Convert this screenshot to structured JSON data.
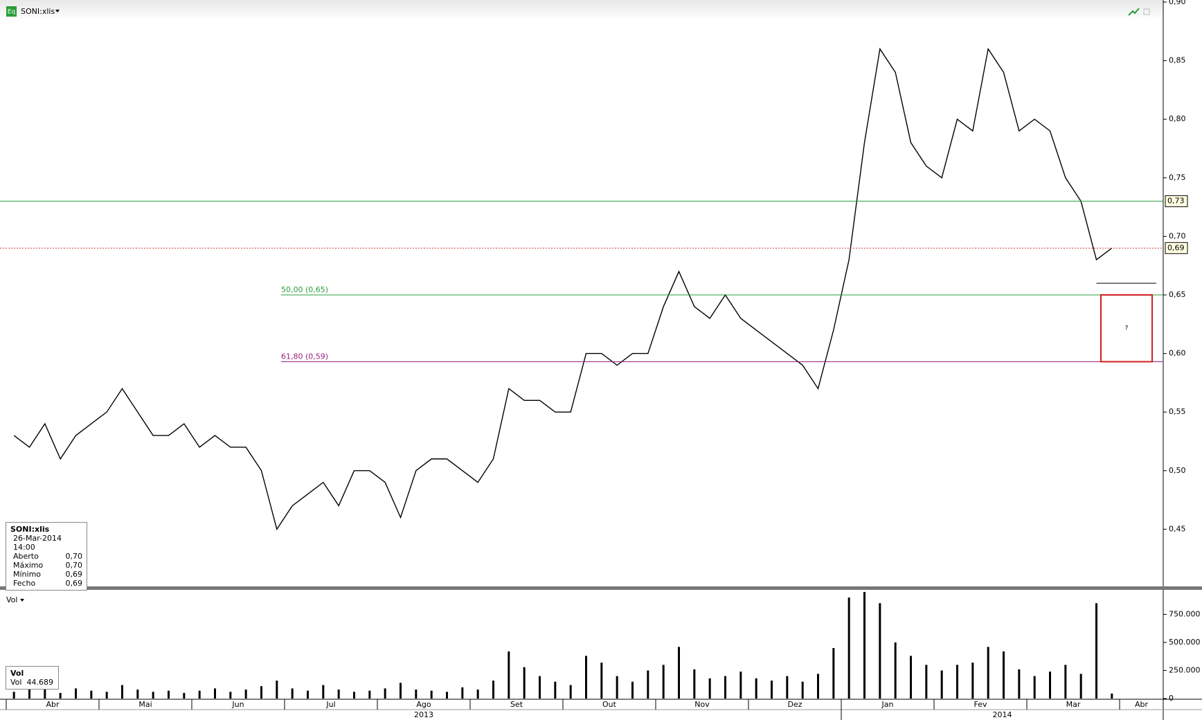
{
  "header": {
    "icon": "Eq",
    "symbol": "SONI:xlis"
  },
  "info_box": {
    "title": "SONI:xlis",
    "datetime": "26-Mar-2014 14:00",
    "rows": [
      [
        "Aberto",
        "0,70"
      ],
      [
        "Máximo",
        "0,70"
      ],
      [
        "Mínimo",
        "0,69"
      ],
      [
        "Fecho",
        "0,69"
      ]
    ]
  },
  "vol_box": {
    "title": "Vol",
    "label": "Vol",
    "value": "44.689"
  },
  "months": [
    "Abr",
    "Mai",
    "Jun",
    "Jul",
    "Ago",
    "Set",
    "Out",
    "Nov",
    "Dez",
    "Jan",
    "Fev",
    "Mar",
    "Abr"
  ],
  "years": [
    "2013",
    "2014"
  ],
  "chart_data": [
    {
      "type": "line",
      "color": "#000000",
      "values": [
        0.53,
        0.52,
        0.54,
        0.51,
        0.53,
        0.54,
        0.55,
        0.57,
        0.55,
        0.53,
        0.53,
        0.54,
        0.52,
        0.53,
        0.52,
        0.52,
        0.5,
        0.45,
        0.47,
        0.48,
        0.49,
        0.47,
        0.5,
        0.5,
        0.49,
        0.46,
        0.5,
        0.51,
        0.51,
        0.5,
        0.49,
        0.51,
        0.57,
        0.56,
        0.56,
        0.55,
        0.55,
        0.6,
        0.6,
        0.59,
        0.6,
        0.6,
        0.64,
        0.67,
        0.64,
        0.63,
        0.65,
        0.63,
        0.62,
        0.61,
        0.6,
        0.59,
        0.57,
        0.62,
        0.68,
        0.78,
        0.86,
        0.84,
        0.78,
        0.76,
        0.75,
        0.8,
        0.79,
        0.86,
        0.84,
        0.79,
        0.8,
        0.79,
        0.75,
        0.73,
        0.68,
        0.69
      ],
      "ylim": [
        0.4,
        0.9
      ],
      "yticks": [
        {
          "value": 0.45,
          "label": "0,45"
        },
        {
          "value": 0.5,
          "label": "0,50"
        },
        {
          "value": 0.55,
          "label": "0,55"
        },
        {
          "value": 0.6,
          "label": "0,60"
        },
        {
          "value": 0.65,
          "label": "0,65"
        },
        {
          "value": 0.7,
          "label": "0,70"
        },
        {
          "value": 0.75,
          "label": "0,75"
        },
        {
          "value": 0.8,
          "label": "0,80"
        },
        {
          "value": 0.85,
          "label": "0,85"
        },
        {
          "value": 0.9,
          "label": "0,90"
        }
      ],
      "price_tags": [
        {
          "value": 0.73,
          "label": "0,73",
          "color": "#2a9d3a"
        },
        {
          "value": 0.69,
          "label": "0,69",
          "color": "#d43a3a"
        }
      ],
      "fib_levels": [
        {
          "value": 0.65,
          "label": "50,00 (0,65)",
          "color": "#2a9d3a"
        },
        {
          "value": 0.593,
          "label": "61,80 (0,59)",
          "color": "#9b1f7f"
        }
      ],
      "support": 0.66,
      "zone": {
        "ylim": [
          0.593,
          0.65
        ],
        "label": "?",
        "color": "#d01f1f"
      }
    },
    {
      "type": "bar",
      "title": "Vol",
      "color": "#000000",
      "values": [
        60000,
        150000,
        80000,
        50000,
        90000,
        70000,
        60000,
        120000,
        80000,
        60000,
        70000,
        50000,
        70000,
        90000,
        60000,
        80000,
        110000,
        160000,
        90000,
        70000,
        120000,
        80000,
        60000,
        70000,
        90000,
        140000,
        80000,
        70000,
        60000,
        100000,
        80000,
        160000,
        420000,
        280000,
        200000,
        150000,
        120000,
        380000,
        320000,
        200000,
        150000,
        250000,
        300000,
        460000,
        260000,
        180000,
        200000,
        240000,
        180000,
        160000,
        200000,
        150000,
        220000,
        450000,
        900000,
        950000,
        850000,
        500000,
        380000,
        300000,
        250000,
        300000,
        320000,
        460000,
        420000,
        260000,
        200000,
        240000,
        300000,
        220000,
        850000,
        44689
      ],
      "ylim": [
        0,
        950000
      ],
      "yticks": [
        0,
        {
          "value": 250000,
          "label": "250.000"
        },
        {
          "value": 500000,
          "label": "500.000"
        },
        {
          "value": 750000,
          "label": "750.000"
        }
      ]
    }
  ]
}
